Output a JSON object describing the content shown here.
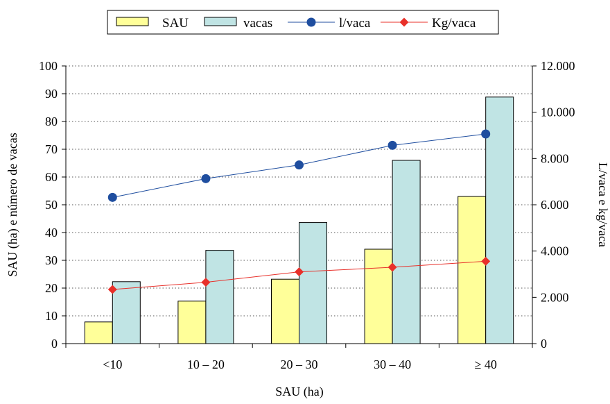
{
  "chart_data": {
    "type": "bar",
    "categories": [
      "<10",
      "10 – 20",
      "20 – 30",
      "30 – 40",
      "≥ 40"
    ],
    "series": [
      {
        "name": "SAU",
        "kind": "bar",
        "axis": "left",
        "color": "#FFFF99",
        "values": [
          7.8,
          15.3,
          23.2,
          34,
          53
        ]
      },
      {
        "name": "vacas",
        "kind": "bar",
        "axis": "left",
        "color": "#C0E4E4",
        "values": [
          22.3,
          33.6,
          43.6,
          66,
          88.8
        ]
      },
      {
        "name": "l/vaca",
        "kind": "line",
        "axis": "right",
        "color": "#1F4E9F",
        "marker": "circle",
        "values": [
          6320,
          7130,
          7720,
          8570,
          9060
        ]
      },
      {
        "name": "Kg/vaca",
        "kind": "line",
        "axis": "right",
        "color": "#E8302A",
        "marker": "diamond",
        "values": [
          2340,
          2650,
          3100,
          3300,
          3560
        ]
      }
    ],
    "xlabel": "SAU (ha)",
    "ylabel": "SAU (ha) e número de vacas",
    "y2label": "L/vaca e kg/vaca",
    "ylim": [
      0,
      100
    ],
    "y2lim": [
      0,
      12000
    ],
    "yticks": [
      "0",
      "10",
      "20",
      "30",
      "40",
      "50",
      "60",
      "70",
      "80",
      "90",
      "100"
    ],
    "y2ticks": [
      "0",
      "2.000",
      "4.000",
      "6.000",
      "8.000",
      "10.000",
      "12.000"
    ],
    "grid": "horizontal dotted",
    "legend_position": "top"
  }
}
